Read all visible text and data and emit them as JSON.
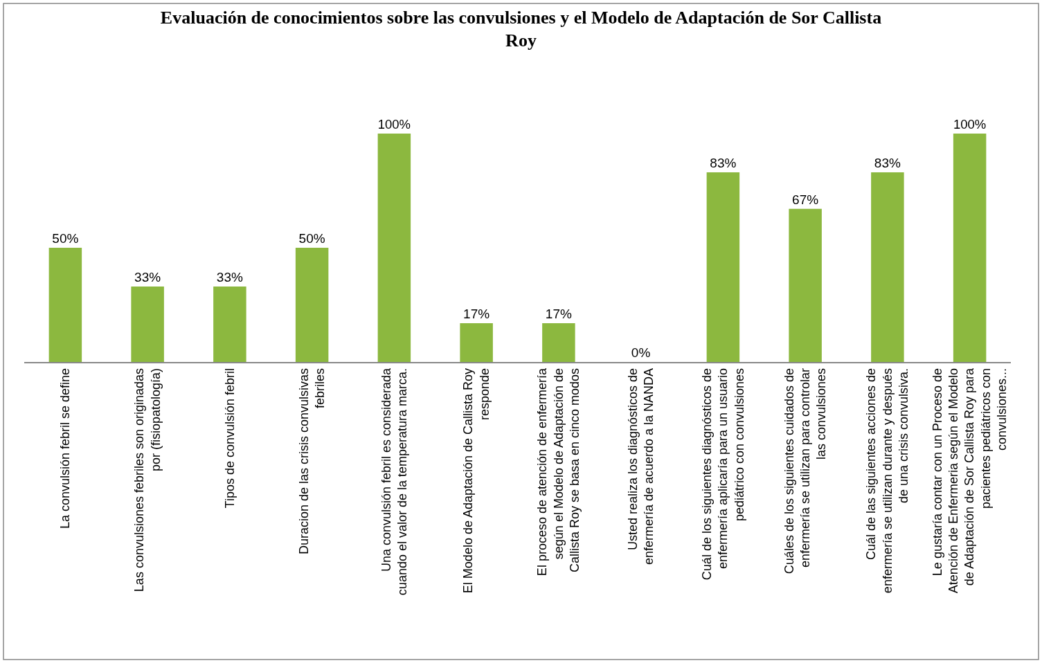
{
  "chart_data": {
    "type": "bar",
    "title": "Evaluación de conocimientos sobre las convulsiones y el Modelo de Adaptación de Sor Callista Roy",
    "categories": [
      "La convulsión febril se define",
      "Las convulsiones febriles son originadas por (fisiopatología)",
      "Tipos de convulsión febril",
      "Duracion de las crisis convulsivas febriles",
      "Una convulsión febril es considerada cuando el valor de la temperatura marca.",
      "El Modelo de Adaptación de Callista Roy responde",
      "El proceso de atención de enfermería según el Modelo de Adaptación de Callista Roy se basa en cinco modos",
      "Usted realiza los diagnósticos de enfermería de acuerdo a la NANDA",
      "Cuál de los siguientes diagnósticos de enfermería aplicaría para un usuario pediátrico con convulsiones",
      "Cuáles de los siguientes cuidados de enfermería se utilizan para controlar las convulsiones",
      "Cuál de las siguientes acciones de enfermería se utilizan durante y después de una crisis convulsiva.",
      "Le gustaría contar con un Proceso de Atención de Enfermeria según el Modelo de Adaptación de Sor Callista Roy para pacientes pediátricos con convulsiones..."
    ],
    "values": [
      50,
      33,
      33,
      50,
      100,
      17,
      17,
      0,
      83,
      67,
      83,
      100
    ],
    "value_labels": [
      "50%",
      "33%",
      "33%",
      "50%",
      "100%",
      "17%",
      "17%",
      "0%",
      "83%",
      "67%",
      "83%",
      "100%"
    ],
    "color": "#8cb83f"
  }
}
